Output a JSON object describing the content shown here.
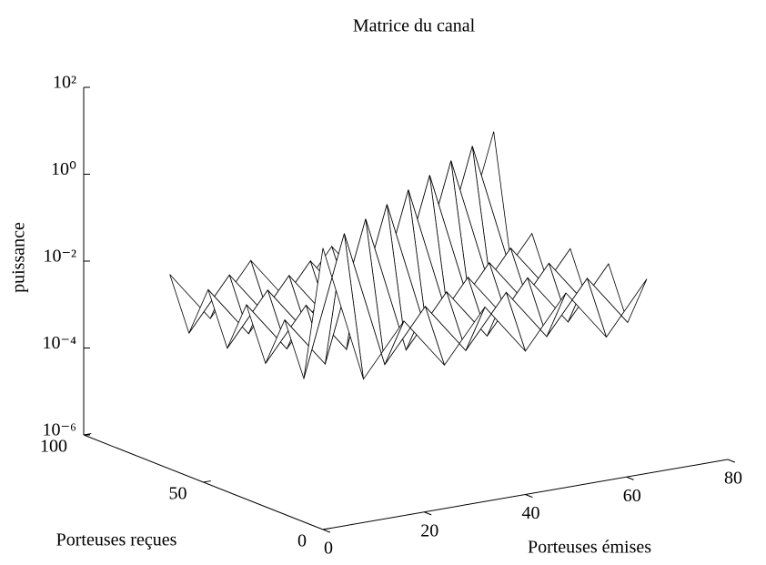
{
  "chart_data": {
    "type": "surface",
    "title": "Matrice du canal",
    "xlabel": "Porteuses émises",
    "ylabel": "Porteuses reçues",
    "zlabel": "puissance",
    "zscale": "log",
    "color": "#ffffff",
    "edgecolor": "#000000",
    "xlim": [
      0,
      80
    ],
    "ylim": [
      0,
      100
    ],
    "zlim": [
      1e-06,
      100
    ],
    "xticks": [
      0,
      20,
      40,
      60,
      80
    ],
    "yticks": [
      0,
      50,
      100
    ],
    "zticks": [
      {
        "value": 1e-06,
        "label": "10⁻⁶"
      },
      {
        "value": 0.0001,
        "label": "10⁻⁴"
      },
      {
        "value": 0.01,
        "label": "10⁻²"
      },
      {
        "value": 1,
        "label": "10⁰"
      },
      {
        "value": 100,
        "label": "10²"
      }
    ],
    "x": [
      0,
      8,
      16,
      24,
      32,
      40,
      48,
      56,
      64
    ],
    "y": [
      0,
      8,
      16,
      24,
      32,
      40,
      48,
      56,
      64
    ],
    "z": [
      [
        3,
        0.002,
        0.03,
        0.002,
        0.03,
        0.002,
        0.03,
        0.002,
        0.03
      ],
      [
        0.002,
        3,
        0.002,
        0.03,
        0.002,
        0.03,
        0.002,
        0.03,
        0.002
      ],
      [
        0.03,
        0.002,
        3,
        0.002,
        0.03,
        0.002,
        0.03,
        0.002,
        0.03
      ],
      [
        0.002,
        0.03,
        0.002,
        3,
        0.002,
        0.03,
        0.002,
        0.03,
        0.002
      ],
      [
        0.03,
        0.002,
        0.03,
        0.002,
        3,
        0.002,
        0.03,
        0.002,
        0.03
      ],
      [
        0.002,
        0.03,
        0.002,
        0.03,
        0.002,
        3,
        0.002,
        0.03,
        0.002
      ],
      [
        0.03,
        0.002,
        0.03,
        0.002,
        0.03,
        0.002,
        3,
        0.002,
        0.03
      ],
      [
        0.002,
        0.03,
        0.002,
        0.03,
        0.002,
        0.03,
        0.002,
        3,
        0.002
      ],
      [
        0.03,
        0.002,
        0.03,
        0.002,
        0.03,
        0.002,
        0.03,
        0.002,
        3
      ]
    ]
  }
}
